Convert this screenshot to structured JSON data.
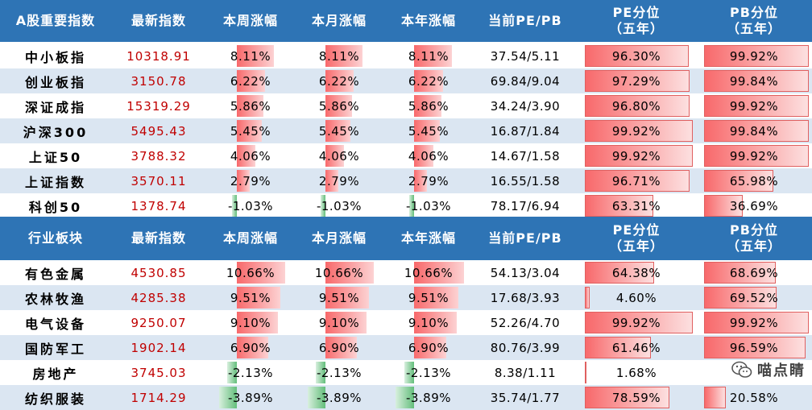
{
  "section1": {
    "headers": [
      "A股重要指数",
      "最新指数",
      "本周涨幅",
      "本月涨幅",
      "本年涨幅",
      "当前PE/PB",
      "PE分位",
      "（五年）",
      "PB分位",
      "（五年）"
    ],
    "rows": [
      {
        "name": "中小板指",
        "index": "10318.91",
        "week": "8.11%",
        "month": "8.11%",
        "year": "8.11%",
        "chg": 8.11,
        "pepb": "37.54/5.11",
        "pe_pct": "96.30%",
        "pe_v": 0.963,
        "pb_pct": "99.92%",
        "pb_v": 0.999
      },
      {
        "name": "创业板指",
        "index": "3150.78",
        "week": "6.22%",
        "month": "6.22%",
        "year": "6.22%",
        "chg": 6.22,
        "pepb": "69.84/9.04",
        "pe_pct": "97.29%",
        "pe_v": 0.973,
        "pb_pct": "99.84%",
        "pb_v": 0.998
      },
      {
        "name": "深证成指",
        "index": "15319.29",
        "week": "5.86%",
        "month": "5.86%",
        "year": "5.86%",
        "chg": 5.86,
        "pepb": "34.24/3.90",
        "pe_pct": "96.80%",
        "pe_v": 0.968,
        "pb_pct": "99.92%",
        "pb_v": 0.999
      },
      {
        "name": "沪深300",
        "index": "5495.43",
        "week": "5.45%",
        "month": "5.45%",
        "year": "5.45%",
        "chg": 5.45,
        "pepb": "16.87/1.84",
        "pe_pct": "99.92%",
        "pe_v": 0.999,
        "pb_pct": "99.84%",
        "pb_v": 0.998
      },
      {
        "name": "上证50",
        "index": "3788.32",
        "week": "4.06%",
        "month": "4.06%",
        "year": "4.06%",
        "chg": 4.06,
        "pepb": "14.67/1.58",
        "pe_pct": "99.92%",
        "pe_v": 0.999,
        "pb_pct": "99.92%",
        "pb_v": 0.999
      },
      {
        "name": "上证指数",
        "index": "3570.11",
        "week": "2.79%",
        "month": "2.79%",
        "year": "2.79%",
        "chg": 2.79,
        "pepb": "16.55/1.58",
        "pe_pct": "96.71%",
        "pe_v": 0.967,
        "pb_pct": "65.98%",
        "pb_v": 0.66
      },
      {
        "name": "科创50",
        "index": "1378.74",
        "week": "-1.03%",
        "month": "-1.03%",
        "year": "-1.03%",
        "chg": -1.03,
        "pepb": "78.17/6.94",
        "pe_pct": "63.31%",
        "pe_v": 0.633,
        "pb_pct": "36.69%",
        "pb_v": 0.367
      }
    ]
  },
  "section2": {
    "headers": [
      "行业板块",
      "最新指数",
      "本周涨幅",
      "本月涨幅",
      "本年涨幅",
      "当前PE/PB",
      "PE分位",
      "（五年）",
      "PB分位",
      "（五年）"
    ],
    "rows": [
      {
        "name": "有色金属",
        "index": "4530.85",
        "week": "10.66%",
        "month": "10.66%",
        "year": "10.66%",
        "chg": 10.66,
        "pepb": "54.13/3.04",
        "pe_pct": "64.38%",
        "pe_v": 0.644,
        "pb_pct": "68.69%",
        "pb_v": 0.687
      },
      {
        "name": "农林牧渔",
        "index": "4285.38",
        "week": "9.51%",
        "month": "9.51%",
        "year": "9.51%",
        "chg": 9.51,
        "pepb": "17.68/3.93",
        "pe_pct": "4.60%",
        "pe_v": 0.046,
        "pb_pct": "69.52%",
        "pb_v": 0.695
      },
      {
        "name": "电气设备",
        "index": "9250.07",
        "week": "9.10%",
        "month": "9.10%",
        "year": "9.10%",
        "chg": 9.1,
        "pepb": "52.26/4.70",
        "pe_pct": "99.92%",
        "pe_v": 0.999,
        "pb_pct": "99.92%",
        "pb_v": 0.999
      },
      {
        "name": "国防军工",
        "index": "1902.14",
        "week": "6.90%",
        "month": "6.90%",
        "year": "6.90%",
        "chg": 6.9,
        "pepb": "80.76/3.99",
        "pe_pct": "61.46%",
        "pe_v": 0.615,
        "pb_pct": "96.59%",
        "pb_v": 0.966
      },
      {
        "name": "房地产",
        "index": "3745.03",
        "week": "-2.13%",
        "month": "-2.13%",
        "year": "-2.13%",
        "chg": -2.13,
        "pepb": "8.38/1.11",
        "pe_pct": "1.68%",
        "pe_v": 0.017,
        "pb_pct": "",
        "pb_v": 0.0
      },
      {
        "name": "纺织服装",
        "index": "1714.29",
        "week": "-3.89%",
        "month": "-3.89%",
        "year": "-3.89%",
        "chg": -3.89,
        "pepb": "35.74/1.77",
        "pe_pct": "78.59%",
        "pe_v": 0.786,
        "pb_pct": "20.58%",
        "pb_v": 0.206
      }
    ]
  },
  "watermark": "喵点睛",
  "colors": {
    "header": "#2e74b5",
    "stripe": "#dbe6f2",
    "index_red": "#c00000",
    "bar_pos": "#f8696b",
    "bar_neg": "#63be7b"
  }
}
